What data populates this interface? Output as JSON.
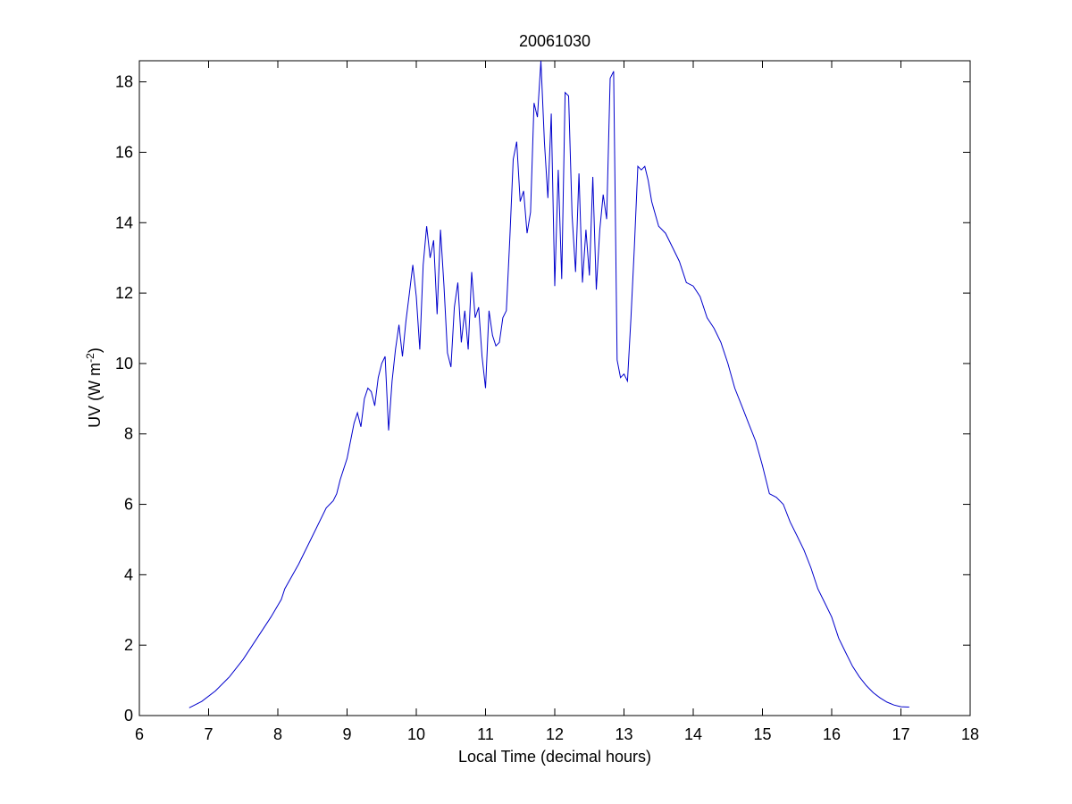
{
  "chart_data": {
    "type": "line",
    "title": "20061030",
    "xlabel": "Local Time (decimal hours)",
    "ylabel_main": "UV (W m",
    "ylabel_sup": "-2",
    "ylabel_close": ")",
    "xlim": [
      6,
      18
    ],
    "ylim": [
      0,
      18.6
    ],
    "xticks": [
      6,
      7,
      8,
      9,
      10,
      11,
      12,
      13,
      14,
      15,
      16,
      17,
      18
    ],
    "yticks": [
      0,
      2,
      4,
      6,
      8,
      10,
      12,
      14,
      16,
      18
    ],
    "grid": false,
    "line_color": "#0000cc",
    "series": [
      {
        "x": [
          6.72,
          6.9,
          7.1,
          7.3,
          7.5,
          7.7,
          7.9,
          8.05,
          8.1,
          8.3,
          8.5,
          8.7,
          8.8,
          8.85,
          8.9,
          9.0,
          9.05,
          9.1,
          9.15,
          9.2,
          9.25,
          9.3,
          9.35,
          9.4,
          9.45,
          9.5,
          9.55,
          9.6,
          9.65,
          9.7,
          9.75,
          9.8,
          9.85,
          9.9,
          9.95,
          10.0,
          10.05,
          10.1,
          10.15,
          10.2,
          10.25,
          10.3,
          10.35,
          10.4,
          10.45,
          10.5,
          10.55,
          10.6,
          10.65,
          10.7,
          10.75,
          10.8,
          10.85,
          10.9,
          10.95,
          11.0,
          11.05,
          11.1,
          11.15,
          11.2,
          11.25,
          11.3,
          11.35,
          11.4,
          11.45,
          11.5,
          11.55,
          11.6,
          11.65,
          11.7,
          11.75,
          11.8,
          11.85,
          11.9,
          11.95,
          12.0,
          12.05,
          12.1,
          12.15,
          12.2,
          12.25,
          12.3,
          12.35,
          12.4,
          12.45,
          12.5,
          12.55,
          12.6,
          12.65,
          12.7,
          12.75,
          12.8,
          12.85,
          12.9,
          12.95,
          13.0,
          13.05,
          13.1,
          13.15,
          13.2,
          13.25,
          13.3,
          13.35,
          13.4,
          13.5,
          13.6,
          13.7,
          13.8,
          13.9,
          14.0,
          14.1,
          14.2,
          14.3,
          14.4,
          14.5,
          14.6,
          14.7,
          14.8,
          14.9,
          15.0,
          15.1,
          15.2,
          15.3,
          15.4,
          15.5,
          15.6,
          15.7,
          15.8,
          15.9,
          16.0,
          16.1,
          16.2,
          16.3,
          16.4,
          16.5,
          16.6,
          16.7,
          16.8,
          16.9,
          17.0,
          17.12
        ],
        "y": [
          0.22,
          0.4,
          0.7,
          1.1,
          1.6,
          2.2,
          2.8,
          3.3,
          3.6,
          4.3,
          5.1,
          5.9,
          6.1,
          6.3,
          6.7,
          7.3,
          7.8,
          8.3,
          8.6,
          8.2,
          9.0,
          9.3,
          9.2,
          8.8,
          9.6,
          10.0,
          10.2,
          8.1,
          9.5,
          10.4,
          11.1,
          10.2,
          11.2,
          12.0,
          12.8,
          11.9,
          10.4,
          12.8,
          13.9,
          13.0,
          13.5,
          11.4,
          13.8,
          12.2,
          10.3,
          9.9,
          11.6,
          12.3,
          10.6,
          11.5,
          10.4,
          12.6,
          11.3,
          11.6,
          10.2,
          9.3,
          11.5,
          10.8,
          10.5,
          10.6,
          11.3,
          11.5,
          13.5,
          15.8,
          16.3,
          14.6,
          14.9,
          13.7,
          14.3,
          17.4,
          17.0,
          18.6,
          16.3,
          14.7,
          17.1,
          12.2,
          15.5,
          12.4,
          17.7,
          17.6,
          14.2,
          12.6,
          15.4,
          12.3,
          13.8,
          12.5,
          15.3,
          12.1,
          13.8,
          14.8,
          14.1,
          18.1,
          18.3,
          10.1,
          9.6,
          9.7,
          9.5,
          11.3,
          13.3,
          15.6,
          15.5,
          15.6,
          15.2,
          14.6,
          13.9,
          13.7,
          13.3,
          12.9,
          12.3,
          12.2,
          11.9,
          11.3,
          11.0,
          10.6,
          10.0,
          9.3,
          8.8,
          8.3,
          7.8,
          7.1,
          6.3,
          6.2,
          6.0,
          5.5,
          5.1,
          4.7,
          4.2,
          3.6,
          3.2,
          2.8,
          2.2,
          1.8,
          1.4,
          1.1,
          0.85,
          0.65,
          0.5,
          0.38,
          0.3,
          0.25,
          0.24
        ]
      }
    ]
  }
}
